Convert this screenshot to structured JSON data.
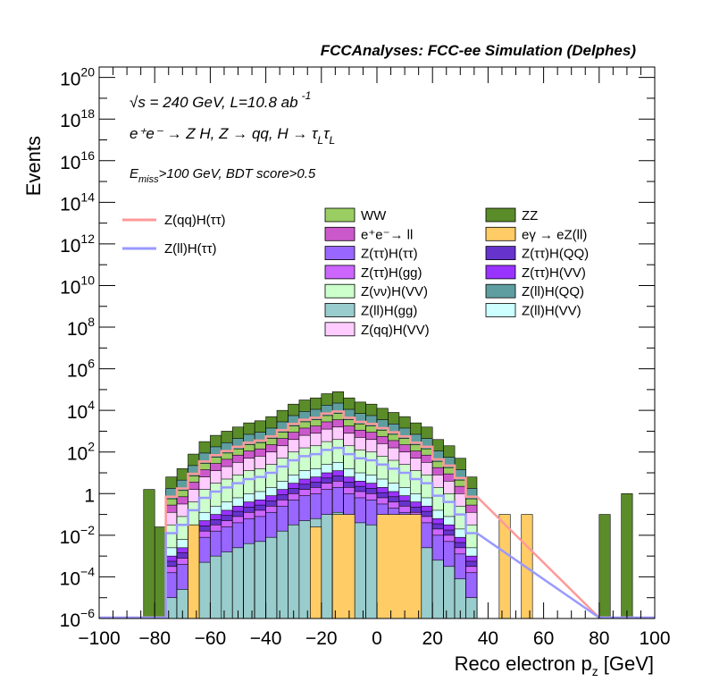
{
  "chart_data": {
    "type": "bar",
    "title": "FCCAnalyses: FCC-ee Simulation (Delphes)",
    "xlabel": "Reco electron p",
    "xlabel_sub": "z",
    "xlabel_unit": "[GeV]",
    "ylabel": "Events",
    "xlim": [
      -100,
      100
    ],
    "ylim_log10": [
      -6,
      20.5
    ],
    "y_scale": "log",
    "x_ticks": [
      "−100",
      "−80",
      "−60",
      "−40",
      "−20",
      "0",
      "20",
      "40",
      "60",
      "80",
      "100"
    ],
    "y_ticks": [
      {
        "base": "10",
        "exp": "20"
      },
      {
        "base": "10",
        "exp": "18"
      },
      {
        "base": "10",
        "exp": "16"
      },
      {
        "base": "10",
        "exp": "14"
      },
      {
        "base": "10",
        "exp": "12"
      },
      {
        "base": "10",
        "exp": "10"
      },
      {
        "base": "10",
        "exp": "8"
      },
      {
        "base": "10",
        "exp": "6"
      },
      {
        "base": "10",
        "exp": "4"
      },
      {
        "base": "10",
        "exp": "2"
      },
      {
        "base": "1",
        "exp": ""
      },
      {
        "base": "10",
        "exp": "−2"
      },
      {
        "base": "10",
        "exp": "−4"
      },
      {
        "base": "10",
        "exp": "−6"
      }
    ],
    "annotations": {
      "energy": "√s = 240 GeV, L=10.8 ab",
      "energy_exp": "-1",
      "process": "e⁺e⁻ → Z H, Z  → qq, H  → τ",
      "process_sub1": "L",
      "process_tau2": "τ",
      "process_sub2": "L",
      "cuts_e": "E",
      "cuts_sub": "miss",
      "cuts_rest": ">100 GeV, BDT score>0.5"
    },
    "bin_edges_start": -76,
    "bin_width": 4,
    "stack_log10_top": [
      0.8,
      1.2,
      1.9,
      2.5,
      2.8,
      3.0,
      3.2,
      3.4,
      3.5,
      3.7,
      4.0,
      4.3,
      4.5,
      4.6,
      4.8,
      4.9,
      4.6,
      4.4,
      4.3,
      4.1,
      3.9,
      3.7,
      3.4,
      3.2,
      2.6,
      2.3,
      1.7,
      0.8
    ],
    "edge_bins": [
      {
        "x0": -84,
        "x1": -80,
        "log10": 0.2
      },
      {
        "x0": -80,
        "x1": -76,
        "log10": -1.6
      },
      {
        "x0": 80,
        "x1": 84,
        "log10": -1.0
      },
      {
        "x0": 88,
        "x1": 92,
        "log10": 0.0
      }
    ],
    "series": [
      {
        "name": "ZZ",
        "color": "#5b8c2a",
        "rel": 0.0
      },
      {
        "name": "Z(ll)H(QQ)",
        "color": "#5f9ea0",
        "rel": 0.55
      },
      {
        "name": "WW",
        "color": "#9acd62",
        "rel": 1.05
      },
      {
        "name": "e⁺e⁻→ ll",
        "color": "#cc59cc",
        "rel": 1.35
      },
      {
        "name": "Z(qq)H(VV)",
        "color": "#ffccff",
        "rel": 1.7
      },
      {
        "name": "Z(νν)H(VV)",
        "color": "#ccffcc",
        "rel": 2.3
      },
      {
        "name": "Z(ll)H(VV)",
        "color": "#ccffff",
        "rel": 3.4
      },
      {
        "name": "Z(ττ)H(VV)",
        "color": "#9933ff",
        "rel": 3.8
      },
      {
        "name": "Z(ττ)H(QQ)",
        "color": "#6633cc",
        "rel": 4.05
      },
      {
        "name": "Z(ττ)H(gg)",
        "color": "#cc66ff",
        "rel": 4.3
      },
      {
        "name": "Z(ττ)H(ττ)",
        "color": "#9966ff",
        "rel": 4.6
      },
      {
        "name": "Z(ll)H(gg)",
        "color": "#99cccc",
        "rel": 5.8
      }
    ],
    "egamma": {
      "name": "eγ → eZ(ll)",
      "color": "#ffcc66",
      "bins": [
        {
          "x0": -68,
          "x1": -64,
          "log10": -1.5
        },
        {
          "x0": -24,
          "x1": -20,
          "log10": -1.6
        },
        {
          "x0": -16,
          "x1": -8,
          "log10": -1.0
        },
        {
          "x0": 0,
          "x1": 16,
          "log10": -1.0
        },
        {
          "x0": 44,
          "x1": 48,
          "log10": -1.0
        },
        {
          "x0": 52,
          "x1": 56,
          "log10": -1.0
        }
      ]
    },
    "signal_lines": [
      {
        "name": "Z(qq)H(ττ)",
        "color": "#ff9999",
        "offset": -0.95,
        "x_end": 80
      },
      {
        "name": "Z(ll)H(ττ)",
        "color": "#9999ff",
        "offset": -2.7,
        "x_end": 80
      }
    ],
    "legend": {
      "placement": "top",
      "col1": [
        "WW",
        "e⁺e⁻→ ll",
        "Z(ττ)H(ττ)",
        "Z(ττ)H(gg)",
        "Z(νν)H(VV)",
        "Z(ll)H(gg)",
        "Z(qq)H(VV)"
      ],
      "col1_colors": [
        "#9acd62",
        "#cc59cc",
        "#9966ff",
        "#cc66ff",
        "#ccffcc",
        "#99cccc",
        "#ffccff"
      ],
      "col2": [
        "ZZ",
        "eγ → eZ(ll)",
        "Z(ττ)H(QQ)",
        "Z(ττ)H(VV)",
        "Z(ll)H(QQ)",
        "Z(ll)H(VV)"
      ],
      "col2_colors": [
        "#5b8c2a",
        "#ffcc66",
        "#6633cc",
        "#9933ff",
        "#5f9ea0",
        "#ccffff"
      ],
      "lines": [
        "Z(qq)H(ττ)",
        "Z(ll)H(ττ)"
      ],
      "line_colors": [
        "#ff9999",
        "#9999ff"
      ]
    }
  }
}
